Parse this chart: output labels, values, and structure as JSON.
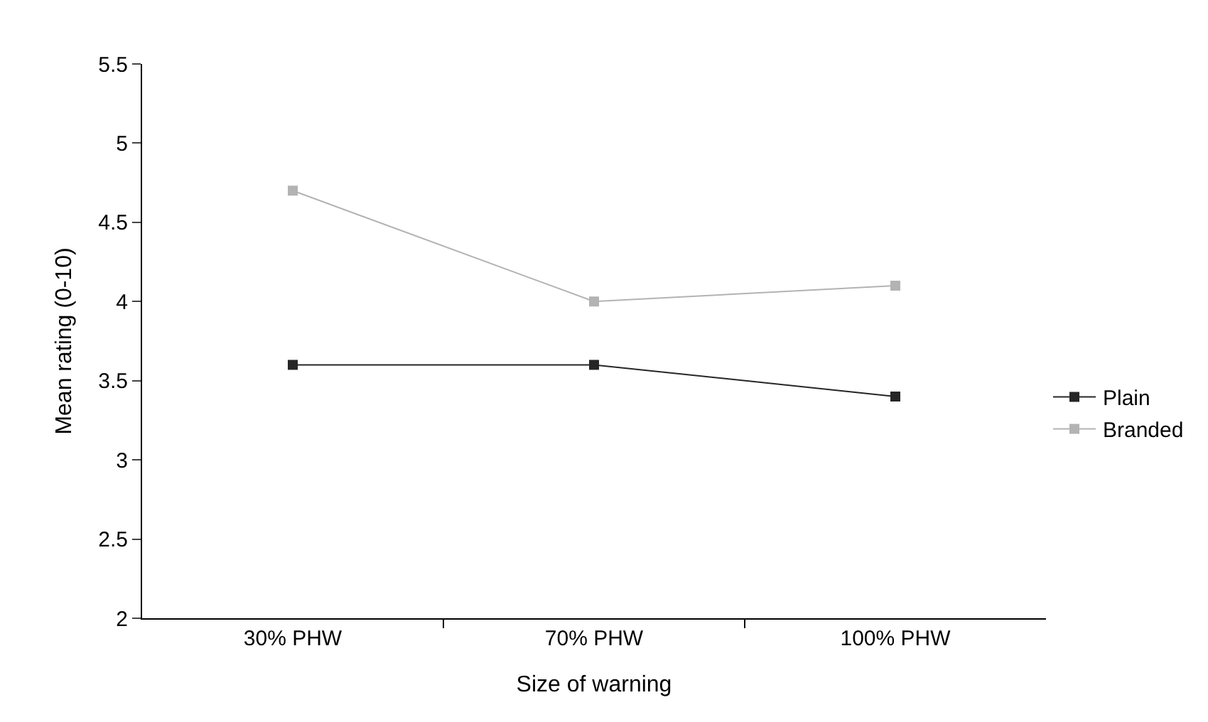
{
  "chart_data": {
    "type": "line",
    "xlabel": "Size of warning",
    "ylabel": "Mean rating (0-10)",
    "categories": [
      "30% PHW",
      "70% PHW",
      "100% PHW"
    ],
    "series": [
      {
        "name": "Plain",
        "color": "#262626",
        "values": [
          3.6,
          3.6,
          3.4
        ]
      },
      {
        "name": "Branded",
        "color": "#b3b3b3",
        "values": [
          4.7,
          4.0,
          4.1
        ]
      }
    ],
    "ylim": [
      2,
      5.5
    ],
    "yticks": [
      2,
      2.5,
      3,
      3.5,
      4,
      4.5,
      5,
      5.5
    ],
    "grid": false,
    "legend": "right",
    "marker": "square",
    "line_style": "solid"
  }
}
